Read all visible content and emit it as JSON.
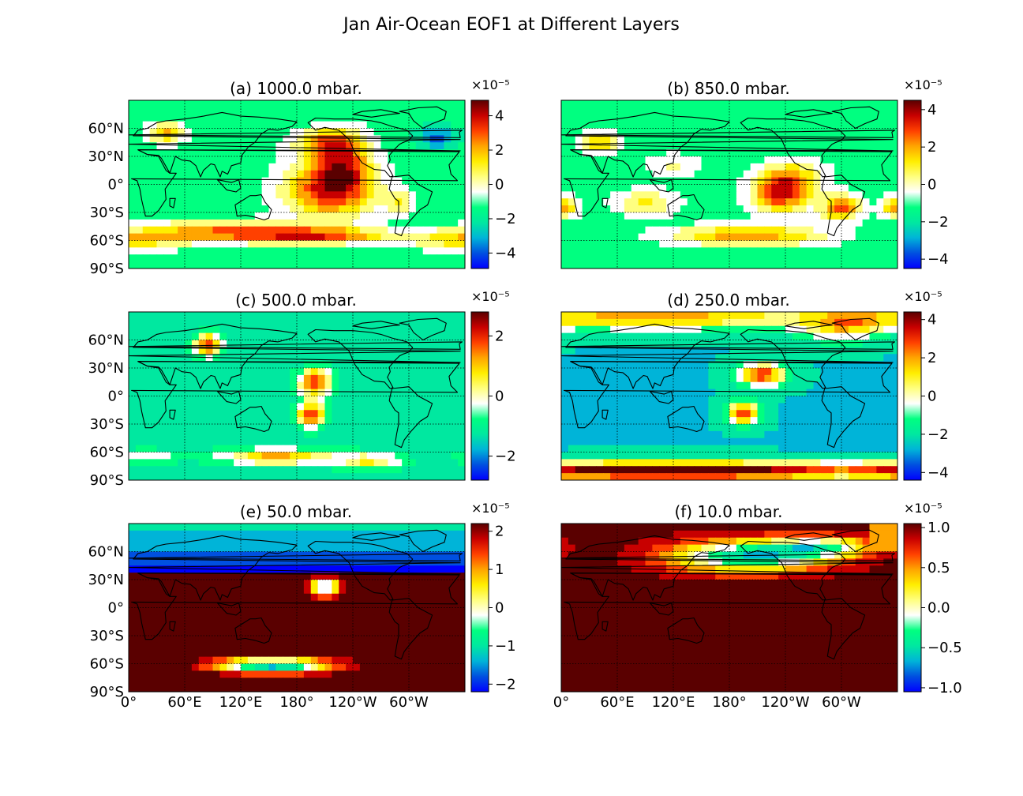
{
  "title": "Jan Air-Ocean EOF1 at Different Layers",
  "chart_data": [
    {
      "type": "heatmap",
      "title": "(a) 1000.0 mbar.",
      "colorbar": {
        "multiplier": "×10⁻⁵",
        "vmin": -4.9,
        "vmax": 4.9,
        "ticks": [
          4,
          2,
          0,
          -2,
          -4
        ],
        "tick_labels": [
          "4",
          "2",
          "0",
          "−2",
          "−4"
        ]
      }
    },
    {
      "type": "heatmap",
      "title": "(b) 850.0 mbar.",
      "colorbar": {
        "multiplier": "×10⁻⁵",
        "vmin": -4.5,
        "vmax": 4.5,
        "ticks": [
          4,
          2,
          0,
          -2,
          -4
        ],
        "tick_labels": [
          "4",
          "2",
          "0",
          "−2",
          "−4"
        ]
      }
    },
    {
      "type": "heatmap",
      "title": "(c) 500.0 mbar.",
      "colorbar": {
        "multiplier": "×10⁻⁵",
        "vmin": -2.8,
        "vmax": 2.8,
        "ticks": [
          2,
          0,
          -2
        ],
        "tick_labels": [
          "2",
          "0",
          "−2"
        ]
      }
    },
    {
      "type": "heatmap",
      "title": "(d) 250.0 mbar.",
      "colorbar": {
        "multiplier": "×10⁻⁵",
        "vmin": -4.4,
        "vmax": 4.4,
        "ticks": [
          4,
          2,
          0,
          -2,
          -4
        ],
        "tick_labels": [
          "4",
          "2",
          "0",
          "−2",
          "−4"
        ]
      }
    },
    {
      "type": "heatmap",
      "title": "(e)  50.0 mbar.",
      "colorbar": {
        "multiplier": "×10⁻⁵",
        "vmin": -2.2,
        "vmax": 2.2,
        "ticks": [
          2,
          1,
          0,
          -1,
          -2
        ],
        "tick_labels": [
          "2",
          "1",
          "0",
          "−1",
          "−2"
        ]
      }
    },
    {
      "type": "heatmap",
      "title": "(f) 10.0 mbar.",
      "colorbar": {
        "multiplier": "×10⁻⁵",
        "vmin": -1.05,
        "vmax": 1.05,
        "ticks": [
          1,
          0.5,
          0,
          -0.5,
          -1
        ],
        "tick_labels": [
          "1.0",
          "0.5",
          "0.0",
          "−0.5",
          "−1.0"
        ]
      }
    }
  ],
  "axes": {
    "lat_ticks": [
      60,
      30,
      0,
      -30,
      -60,
      -90
    ],
    "lat_labels": [
      "60°N",
      "30°N",
      "0°",
      "30°S",
      "60°S",
      "90°S"
    ],
    "lon_ticks": [
      0,
      60,
      120,
      180,
      240,
      300
    ],
    "lon_labels": [
      "0°",
      "60°E",
      "120°E",
      "180°",
      "120°W",
      "60°W"
    ],
    "lat_range": [
      -90,
      90
    ],
    "lon_range": [
      0,
      360
    ]
  },
  "colors": {
    "colormap": [
      "#0000ff",
      "#0050e0",
      "#00b4d8",
      "#00e8a0",
      "#00ff80",
      "#ffffff",
      "#ffff80",
      "#ffee00",
      "#ffa500",
      "#ff4000",
      "#c80000",
      "#5a0000"
    ],
    "background": "#ffffff"
  }
}
